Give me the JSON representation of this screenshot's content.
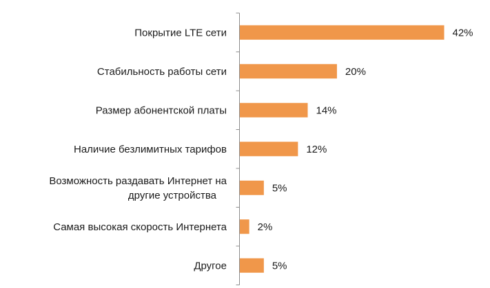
{
  "chart_data": {
    "type": "bar",
    "orientation": "horizontal",
    "title": "",
    "xlabel": "",
    "ylabel": "",
    "categories": [
      [
        "Покрытие LTE сети"
      ],
      [
        "Стабильность работы сети"
      ],
      [
        "Размер абонентской платы"
      ],
      [
        "Наличие безлимитных тарифов"
      ],
      [
        "Возможность раздавать Интернет на",
        "другие устройства"
      ],
      [
        "Самая высокая скорость Интернета"
      ],
      [
        "Другое"
      ]
    ],
    "values": [
      42,
      20,
      14,
      12,
      5,
      2,
      5
    ],
    "value_labels": [
      "42%",
      "20%",
      "14%",
      "12%",
      "5%",
      "2%",
      "5%"
    ],
    "xlim": [
      0,
      42
    ],
    "grid": false,
    "legend": "none",
    "bar_color": "#F0974A",
    "axis_color": "#8c8c8c"
  }
}
